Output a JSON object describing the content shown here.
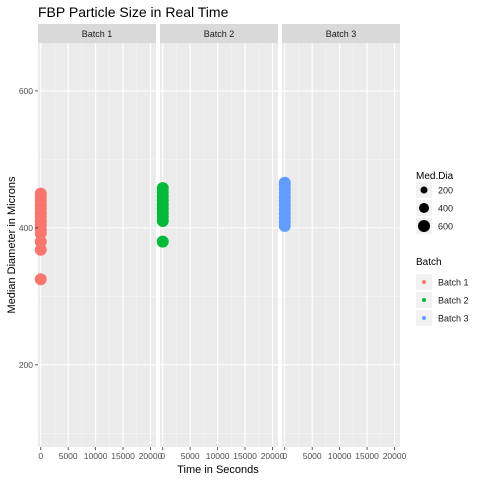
{
  "chart_data": {
    "type": "scatter",
    "title": "FBP Particle Size in Real Time",
    "xlabel": "Time in Seconds",
    "ylabel": "Median Diameter in Microns",
    "xlim": [
      -500,
      21000
    ],
    "ylim": [
      80,
      670
    ],
    "x_ticks": [
      0,
      5000,
      10000,
      15000,
      20000
    ],
    "y_ticks": [
      200,
      400,
      600
    ],
    "grid": true,
    "facets": [
      "Batch 1",
      "Batch 2",
      "Batch 3"
    ],
    "size_legend": {
      "title": "Med.Dia",
      "items": [
        {
          "label": "200",
          "value": 200
        },
        {
          "label": "400",
          "value": 400
        },
        {
          "label": "600",
          "value": 600
        }
      ]
    },
    "color_legend": {
      "title": "Batch",
      "items": [
        {
          "label": "Batch 1",
          "color": "#F8766D"
        },
        {
          "label": "Batch 2",
          "color": "#00BA38"
        },
        {
          "label": "Batch 3",
          "color": "#619CFF"
        }
      ]
    },
    "series": [
      {
        "name": "Batch 1",
        "color": "#F8766D",
        "points": [
          {
            "x": 0,
            "y": 325
          },
          {
            "x": 0,
            "y": 368
          },
          {
            "x": 0,
            "y": 380
          },
          {
            "x": 0,
            "y": 392
          },
          {
            "x": 0,
            "y": 398
          },
          {
            "x": 0,
            "y": 404
          },
          {
            "x": 0,
            "y": 410
          },
          {
            "x": 0,
            "y": 416
          },
          {
            "x": 0,
            "y": 422
          },
          {
            "x": 0,
            "y": 428
          },
          {
            "x": 0,
            "y": 434
          },
          {
            "x": 0,
            "y": 440
          },
          {
            "x": 0,
            "y": 446
          },
          {
            "x": 0,
            "y": 450
          }
        ]
      },
      {
        "name": "Batch 2",
        "color": "#00BA38",
        "points": [
          {
            "x": 0,
            "y": 380
          },
          {
            "x": 0,
            "y": 410
          },
          {
            "x": 0,
            "y": 416
          },
          {
            "x": 0,
            "y": 422
          },
          {
            "x": 0,
            "y": 428
          },
          {
            "x": 0,
            "y": 434
          },
          {
            "x": 0,
            "y": 440
          },
          {
            "x": 0,
            "y": 446
          },
          {
            "x": 0,
            "y": 452
          },
          {
            "x": 0,
            "y": 458
          }
        ]
      },
      {
        "name": "Batch 3",
        "color": "#619CFF",
        "points": [
          {
            "x": 0,
            "y": 403
          },
          {
            "x": 0,
            "y": 409
          },
          {
            "x": 0,
            "y": 415
          },
          {
            "x": 0,
            "y": 421
          },
          {
            "x": 0,
            "y": 427
          },
          {
            "x": 0,
            "y": 433
          },
          {
            "x": 0,
            "y": 439
          },
          {
            "x": 0,
            "y": 445
          },
          {
            "x": 0,
            "y": 451
          },
          {
            "x": 0,
            "y": 457
          },
          {
            "x": 0,
            "y": 463
          },
          {
            "x": 0,
            "y": 466
          }
        ]
      }
    ]
  }
}
